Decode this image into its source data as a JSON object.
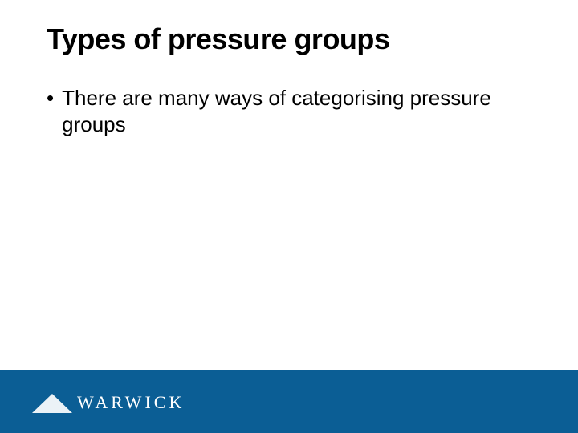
{
  "slide": {
    "title": "Types of pressure groups",
    "title_fontsize": 36,
    "title_color": "#000000",
    "bullets": [
      {
        "marker": "•",
        "text": "There are many ways of categorising pressure groups"
      }
    ],
    "body_fontsize": 26,
    "body_color": "#000000",
    "background_color": "#ffffff"
  },
  "footer": {
    "band_color": "#0b5e95",
    "logo_text": "WARWICK",
    "logo_text_color": "#ffffff",
    "logo_triangle_color": "#ffffff"
  }
}
